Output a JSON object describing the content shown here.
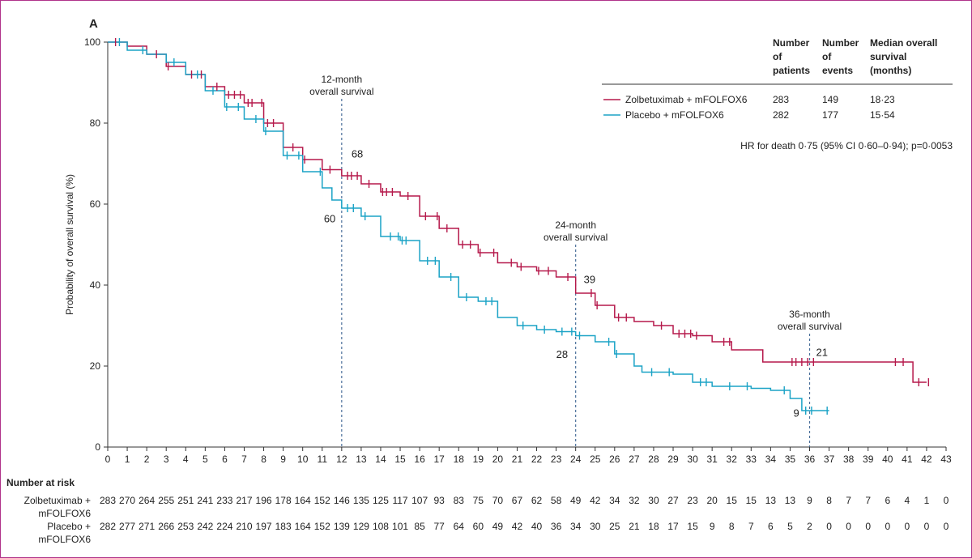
{
  "chart_data": {
    "type": "line",
    "panel_label": "A",
    "ylabel": "Probability of overall survival (%)",
    "xlim": [
      0,
      43
    ],
    "ylim": [
      0,
      100
    ],
    "x_ticks": [
      "0",
      "1",
      "2",
      "3",
      "4",
      "5",
      "6",
      "7",
      "8",
      "9",
      "10",
      "11",
      "12",
      "13",
      "14",
      "15",
      "16",
      "17",
      "18",
      "19",
      "20",
      "21",
      "22",
      "23",
      "24",
      "25",
      "26",
      "27",
      "28",
      "29",
      "30",
      "31",
      "32",
      "33",
      "34",
      "35",
      "36",
      "37",
      "38",
      "39",
      "40",
      "41",
      "42",
      "43"
    ],
    "y_ticks": [
      "0",
      "20",
      "40",
      "60",
      "80",
      "100"
    ],
    "colors": {
      "zolbetuximab": "#b5194b",
      "placebo": "#1ba3c6",
      "reference_line": "#4a6f9a"
    },
    "series": [
      {
        "name": "Zolbetuximab + mFOLFOX6",
        "points": [
          [
            0,
            100
          ],
          [
            1,
            99
          ],
          [
            2,
            97
          ],
          [
            3,
            94
          ],
          [
            4,
            92
          ],
          [
            5,
            89
          ],
          [
            6,
            87
          ],
          [
            7,
            85
          ],
          [
            8,
            80
          ],
          [
            9,
            74
          ],
          [
            10,
            71
          ],
          [
            11,
            68.5
          ],
          [
            12,
            67
          ],
          [
            13,
            65
          ],
          [
            14,
            63
          ],
          [
            15,
            62
          ],
          [
            16,
            57
          ],
          [
            17,
            54
          ],
          [
            18,
            50
          ],
          [
            19,
            48
          ],
          [
            20,
            45.5
          ],
          [
            21,
            44.5
          ],
          [
            22,
            43.5
          ],
          [
            23,
            42
          ],
          [
            24,
            38
          ],
          [
            25,
            35
          ],
          [
            26,
            32
          ],
          [
            27,
            31
          ],
          [
            28,
            30
          ],
          [
            29,
            28
          ],
          [
            30,
            27.5
          ],
          [
            31,
            26
          ],
          [
            32,
            24
          ],
          [
            33,
            24
          ],
          [
            33.6,
            21
          ],
          [
            41,
            21
          ],
          [
            41.3,
            16
          ],
          [
            42,
            16
          ]
        ],
        "censor_x": [
          0.4,
          2.5,
          3.1,
          4.3,
          4.8,
          5.6,
          6.2,
          6.5,
          6.8,
          7.2,
          7.4,
          7.9,
          8.2,
          8.5,
          9.5,
          10.1,
          11.4,
          12.3,
          12.5,
          12.8,
          13.4,
          14.1,
          14.3,
          14.6,
          15.4,
          16.3,
          16.9,
          17.4,
          18.2,
          18.6,
          19.1,
          19.8,
          20.7,
          21.2,
          22.1,
          22.6,
          23.6,
          24.8,
          25.1,
          26.2,
          26.6,
          28.4,
          29.3,
          29.6,
          29.9,
          30.2,
          31.6,
          31.9,
          35.1,
          35.3,
          35.6,
          35.9,
          36.2,
          40.4,
          40.8,
          41.6,
          42.1
        ],
        "label_12": "68",
        "label_24": "39",
        "label_36": "21"
      },
      {
        "name": "Placebo + mFOLFOX6",
        "points": [
          [
            0,
            100
          ],
          [
            1,
            98
          ],
          [
            2,
            97
          ],
          [
            3,
            95
          ],
          [
            4,
            92
          ],
          [
            5,
            88
          ],
          [
            6,
            84
          ],
          [
            7,
            81
          ],
          [
            8,
            78
          ],
          [
            9,
            72
          ],
          [
            10,
            68
          ],
          [
            11,
            64
          ],
          [
            11.5,
            61
          ],
          [
            12,
            59
          ],
          [
            13,
            57
          ],
          [
            14,
            52
          ],
          [
            15,
            51
          ],
          [
            16,
            46
          ],
          [
            17,
            42
          ],
          [
            18,
            37
          ],
          [
            19,
            36
          ],
          [
            20,
            32
          ],
          [
            21,
            30
          ],
          [
            22,
            29
          ],
          [
            23,
            28.5
          ],
          [
            24,
            27.5
          ],
          [
            25,
            26
          ],
          [
            26,
            23
          ],
          [
            27,
            20
          ],
          [
            27.4,
            18.5
          ],
          [
            29,
            18
          ],
          [
            30,
            16
          ],
          [
            31,
            15
          ],
          [
            33,
            14.5
          ],
          [
            34,
            14
          ],
          [
            35,
            12
          ],
          [
            35.6,
            9
          ],
          [
            37,
            9
          ]
        ],
        "censor_x": [
          0.6,
          1.8,
          3.4,
          4.6,
          5.4,
          6.1,
          6.7,
          7.6,
          8.1,
          9.2,
          9.8,
          10.9,
          12.3,
          12.6,
          13.2,
          14.5,
          14.9,
          15.1,
          15.3,
          16.4,
          16.8,
          17.6,
          18.4,
          19.4,
          19.7,
          21.3,
          22.4,
          23.3,
          23.8,
          24.2,
          25.7,
          26.1,
          27.9,
          28.8,
          30.4,
          30.7,
          31.9,
          32.8,
          34.7,
          35.8,
          36.1,
          36.9
        ],
        "label_12": "60",
        "label_24": "28",
        "label_36": "9"
      }
    ],
    "reference_lines": [
      {
        "x": 12,
        "label": [
          "12-month",
          "overall survival"
        ]
      },
      {
        "x": 24,
        "label": [
          "24-month",
          "overall survival"
        ]
      },
      {
        "x": 36,
        "label": [
          "36-month",
          "overall survival"
        ]
      }
    ],
    "legend_table": {
      "headers": [
        [
          "Number",
          "of",
          "patients"
        ],
        [
          "Number",
          "of",
          "events"
        ],
        [
          "Median overall",
          "survival",
          "(months)"
        ]
      ],
      "rows": [
        {
          "label": "Zolbetuximab + mFOLFOX6",
          "patients": "283",
          "events": "149",
          "median": "18·23"
        },
        {
          "label": "Placebo + mFOLFOX6",
          "patients": "282",
          "events": "177",
          "median": "15·54"
        }
      ],
      "hr_text": "HR for death 0·75 (95% CI 0·60–0·94); p=0·0053"
    },
    "number_at_risk": {
      "title": "Number at risk",
      "rows": [
        {
          "label": [
            "Zolbetuximab +",
            "mFOLFOX6"
          ],
          "values": [
            283,
            270,
            264,
            255,
            251,
            241,
            233,
            217,
            196,
            178,
            164,
            152,
            146,
            135,
            125,
            117,
            107,
            93,
            83,
            75,
            70,
            67,
            62,
            58,
            49,
            42,
            34,
            32,
            30,
            27,
            23,
            20,
            15,
            15,
            13,
            13,
            9,
            8,
            7,
            7,
            6,
            4,
            1,
            0
          ]
        },
        {
          "label": [
            "Placebo +",
            "mFOLFOX6"
          ],
          "values": [
            282,
            277,
            271,
            266,
            253,
            242,
            224,
            210,
            197,
            183,
            164,
            152,
            139,
            129,
            108,
            101,
            85,
            77,
            64,
            60,
            49,
            42,
            40,
            36,
            34,
            30,
            25,
            21,
            18,
            17,
            15,
            9,
            8,
            7,
            6,
            5,
            2,
            0,
            0,
            0,
            0,
            0,
            0,
            0
          ]
        }
      ]
    }
  }
}
